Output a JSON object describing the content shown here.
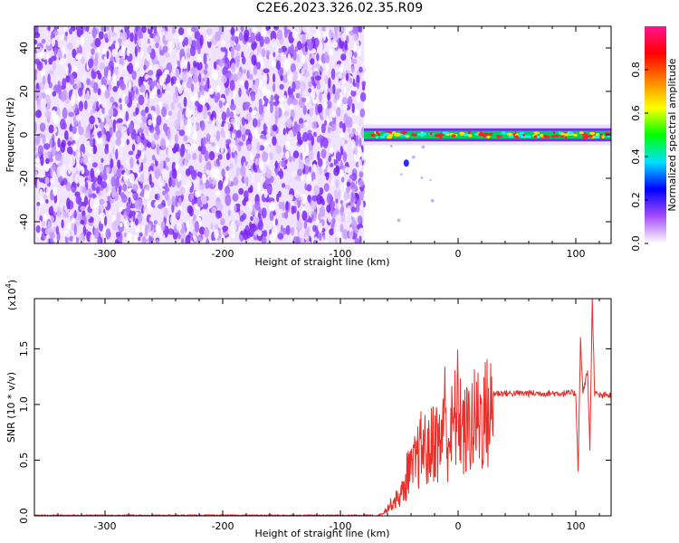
{
  "title": "C2E6.2023.326.02.35.R09",
  "chart_data": [
    {
      "type": "heatmap",
      "xlabel": "Height of straight line (km)",
      "ylabel": "Frequency (Hz)",
      "xlim": [
        -360,
        130
      ],
      "ylim": [
        -50,
        50
      ],
      "x_ticks": [
        "-300",
        "-200",
        "-100",
        "0",
        "100"
      ],
      "y_ticks": [
        "-40",
        "-20",
        "0",
        "20",
        "40"
      ],
      "colorbar": {
        "label": "Normalized spectral amplitude",
        "range": [
          0,
          1
        ],
        "ticks": [
          "0.0",
          "0.2",
          "0.4",
          "0.6",
          "0.8"
        ],
        "colors": [
          "#ffffff",
          "#a64dff",
          "#0000ff",
          "#00e0ff",
          "#00ff00",
          "#ffff00",
          "#ff8000",
          "#ff0000",
          "#ff1493"
        ]
      },
      "noise_region_x": [
        -360,
        -80
      ],
      "signal_band": {
        "x_start": -80,
        "x_end": 130,
        "frequency_center": 0,
        "frequency_halfwidth": 3
      }
    },
    {
      "type": "line",
      "xlabel": "Height of straight line (km)",
      "ylabel": "SNR (10 * v/v)",
      "multiplier": "(x10",
      "multiplier_exp": "4",
      "multiplier_close": ")",
      "xlim": [
        -360,
        130
      ],
      "ylim": [
        0,
        1.95
      ],
      "x_ticks": [
        "-300",
        "-200",
        "-100",
        "0",
        "100"
      ],
      "y_ticks": [
        "0.0",
        "0.5",
        "1.0",
        "1.5"
      ],
      "series": [
        {
          "color": "#e8302a",
          "x": [
            -360,
            -70,
            -65,
            -60,
            -55,
            -50,
            -45,
            -42,
            -40,
            -35,
            -30,
            -25,
            -20,
            -15,
            -12,
            -10,
            -5,
            0,
            5,
            10,
            15,
            20,
            25,
            30,
            40,
            50,
            60,
            70,
            80,
            90,
            100,
            102,
            104,
            106,
            110,
            112,
            114,
            116,
            120,
            130
          ],
          "y": [
            0.0,
            0.0,
            0.02,
            0.08,
            0.15,
            0.2,
            0.3,
            0.55,
            0.45,
            0.6,
            0.75,
            0.65,
            0.85,
            0.7,
            1.25,
            0.8,
            0.9,
            1.15,
            0.85,
            0.95,
            1.0,
            1.05,
            1.08,
            1.1,
            1.1,
            1.1,
            1.1,
            1.1,
            1.1,
            1.1,
            1.1,
            0.4,
            1.6,
            1.1,
            1.3,
            0.6,
            1.95,
            1.1,
            1.08,
            1.08
          ]
        }
      ]
    }
  ]
}
